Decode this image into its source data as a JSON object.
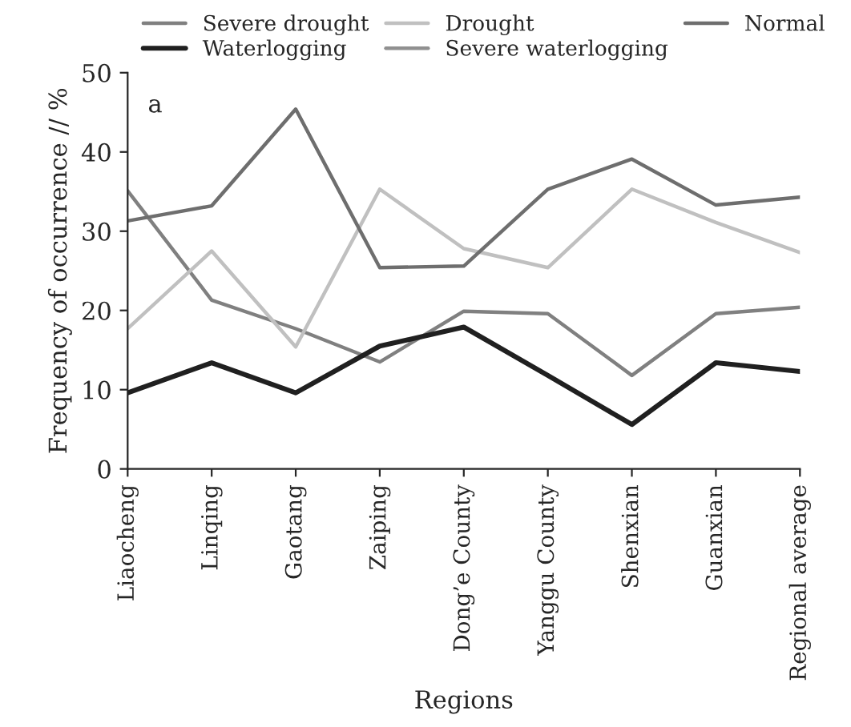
{
  "chart_data": {
    "type": "line",
    "xlabel": "Regions",
    "ylabel": "Frequency of occurrence // %",
    "annotations": [
      "a"
    ],
    "categories": [
      "Liaocheng",
      "Linqing",
      "Gaotang",
      "Zaiping",
      "Dong’e County",
      "Yanggu County",
      "Shenxian",
      "Guanxian",
      "Regional average"
    ],
    "series": [
      {
        "name": "Severe drought",
        "color": "#808080",
        "values": [
          35.1,
          21.3,
          17.7,
          13.5,
          19.9,
          19.6,
          11.8,
          19.6,
          20.4
        ]
      },
      {
        "name": "Drought",
        "color": "#c0c0c0",
        "values": [
          17.7,
          27.5,
          15.4,
          35.3,
          27.8,
          25.4,
          35.3,
          31.1,
          27.3
        ]
      },
      {
        "name": "Normal",
        "color": "#6e6e6e",
        "values": [
          31.3,
          33.2,
          45.4,
          25.4,
          25.6,
          35.3,
          39.1,
          33.3,
          34.3
        ]
      },
      {
        "name": "Waterlogging",
        "color": "#202020",
        "values": [
          9.6,
          13.4,
          9.6,
          15.5,
          17.9,
          11.8,
          5.6,
          13.4,
          12.3
        ]
      },
      {
        "name": "Severe waterlogging",
        "color": "#909090",
        "values": [
          null,
          null,
          null,
          null,
          null,
          null,
          null,
          null,
          null
        ]
      }
    ],
    "ylim": [
      0,
      50
    ],
    "yticks": [
      0,
      10,
      20,
      30,
      40,
      50
    ],
    "grid": false,
    "legend": "top right",
    "marker": "none",
    "line_style": "solid"
  }
}
